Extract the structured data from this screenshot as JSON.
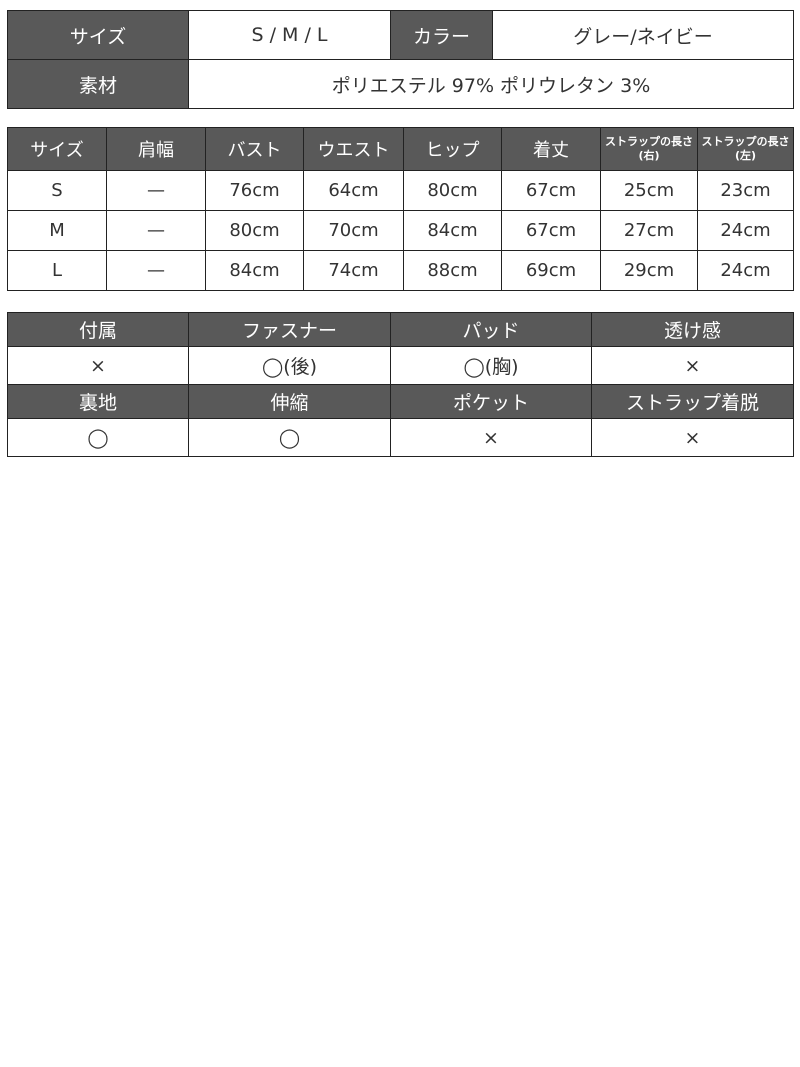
{
  "overview": {
    "size_label": "サイズ",
    "size_value": "S / M / L",
    "color_label": "カラー",
    "color_value": "グレー/ネイビー",
    "material_label": "素材",
    "material_value": "ポリエステル 97% ポリウレタン 3%"
  },
  "size_table": {
    "headers": [
      "サイズ",
      "肩幅",
      "バスト",
      "ウエスト",
      "ヒップ",
      "着丈",
      "ストラップの長さ(右)",
      "ストラップの長さ(左)"
    ],
    "rows": [
      [
        "S",
        "—",
        "76cm",
        "64cm",
        "80cm",
        "67cm",
        "25cm",
        "23cm"
      ],
      [
        "M",
        "—",
        "80cm",
        "70cm",
        "84cm",
        "67cm",
        "27cm",
        "24cm"
      ],
      [
        "L",
        "—",
        "84cm",
        "74cm",
        "88cm",
        "69cm",
        "29cm",
        "24cm"
      ]
    ]
  },
  "features": {
    "headers1": [
      "付属",
      "ファスナー",
      "パッド",
      "透け感"
    ],
    "values1": [
      "×",
      "◯(後)",
      "◯(胸)",
      "×"
    ],
    "headers2": [
      "裏地",
      "伸縮",
      "ポケット",
      "ストラップ着脱"
    ],
    "values2": [
      "◯",
      "◯",
      "×",
      "×"
    ]
  },
  "colors": {
    "header_bg": "#595959",
    "header_text": "#ffffff",
    "border": "#222222"
  }
}
